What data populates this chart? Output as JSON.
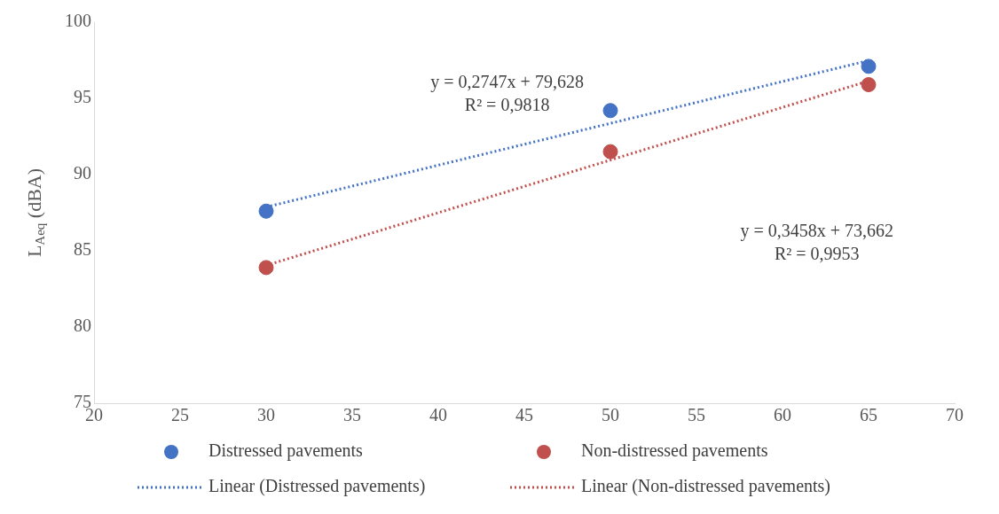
{
  "chart_data": {
    "type": "scatter",
    "ylabel": "L$_{Aeq}$ (dBA)",
    "xlim": [
      20,
      70
    ],
    "xticks": [
      20,
      25,
      30,
      35,
      40,
      45,
      50,
      55,
      60,
      65,
      70
    ],
    "ylim": [
      75,
      100
    ],
    "yticks": [
      75,
      80,
      85,
      90,
      95,
      100
    ],
    "grid": false,
    "legend": "bottom",
    "marker": "circle",
    "series": [
      {
        "name": "Distressed pavements",
        "color": "#4472c4",
        "x": [
          30,
          50,
          65
        ],
        "values": [
          87.6,
          94.2,
          97.1
        ]
      },
      {
        "name": "Non-distressed pavements",
        "color": "#c0504d",
        "x": [
          30,
          50,
          65
        ],
        "values": [
          83.9,
          91.5,
          95.9
        ]
      },
      {
        "name": "Linear (Distressed pavements)",
        "type": "line",
        "color": "#4472c4",
        "x": [
          30,
          65
        ],
        "values": [
          87.87,
          97.48
        ],
        "line_style": "dotted",
        "marker": "none"
      },
      {
        "name": "Linear (Non-distressed pavements)",
        "type": "line",
        "color": "#c0504d",
        "x": [
          30,
          65
        ],
        "values": [
          84.04,
          96.14
        ],
        "line_style": "dotted",
        "marker": "none"
      }
    ],
    "annotations": [
      "y = 0,2747x + 79,628\nR² = 0,9818",
      "y = 0,3458x + 73,662\nR² = 0,9953"
    ]
  }
}
